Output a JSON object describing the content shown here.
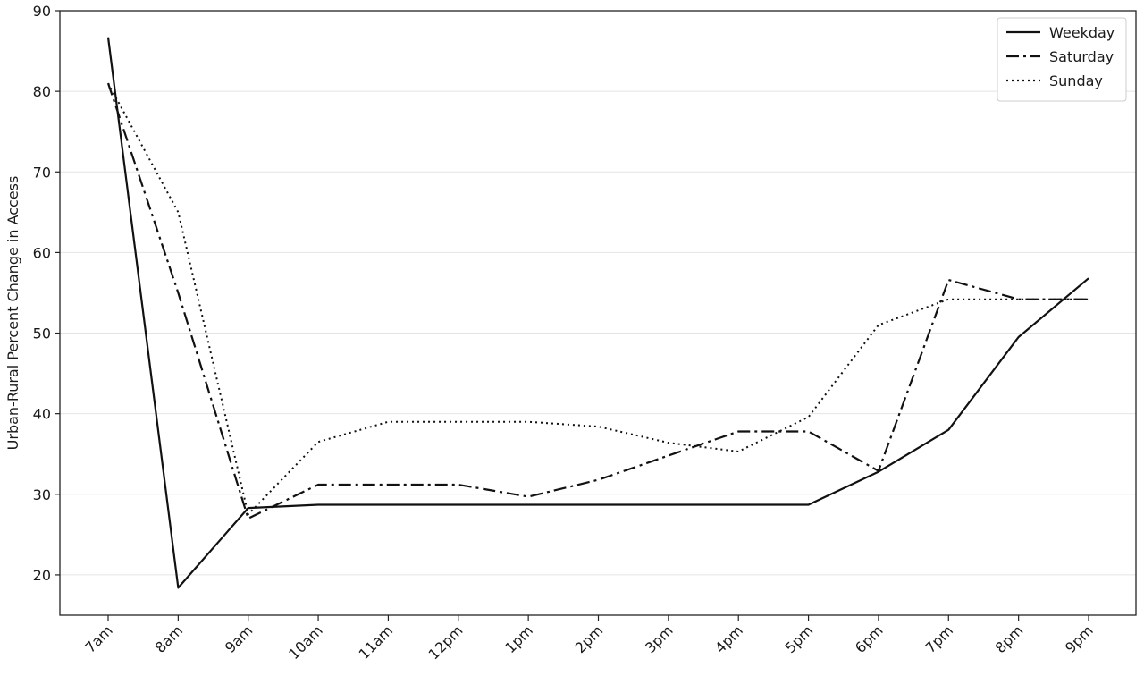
{
  "chart_data": {
    "type": "line",
    "title": "",
    "xlabel": "",
    "ylabel": "Urban-Rural Percent Change in Access",
    "categories": [
      "7am",
      "8am",
      "9am",
      "10am",
      "11am",
      "12pm",
      "1pm",
      "2pm",
      "3pm",
      "4pm",
      "5pm",
      "6pm",
      "7pm",
      "8pm",
      "9pm"
    ],
    "ylim": [
      15,
      90
    ],
    "yticks": [
      20,
      30,
      40,
      50,
      60,
      70,
      80,
      90
    ],
    "grid": "horizontal",
    "legend_position": "top-right",
    "series": [
      {
        "name": "Weekday",
        "style": "solid",
        "color": "#111111",
        "values": [
          86.7,
          18.4,
          28.3,
          28.7,
          28.7,
          28.7,
          28.7,
          28.7,
          28.7,
          28.7,
          28.7,
          32.8,
          38.0,
          49.5,
          56.8
        ]
      },
      {
        "name": "Saturday",
        "style": "dashdot",
        "color": "#111111",
        "values": [
          81.0,
          55.0,
          27.0,
          31.2,
          31.2,
          31.2,
          29.7,
          31.8,
          34.8,
          37.8,
          37.8,
          32.9,
          56.6,
          54.2,
          54.2
        ]
      },
      {
        "name": "Sunday",
        "style": "dotted",
        "color": "#111111",
        "values": [
          81.0,
          65.0,
          27.5,
          36.5,
          39.0,
          39.0,
          39.0,
          38.4,
          36.4,
          35.3,
          39.6,
          51.0,
          54.2,
          54.2,
          54.2
        ]
      }
    ]
  }
}
